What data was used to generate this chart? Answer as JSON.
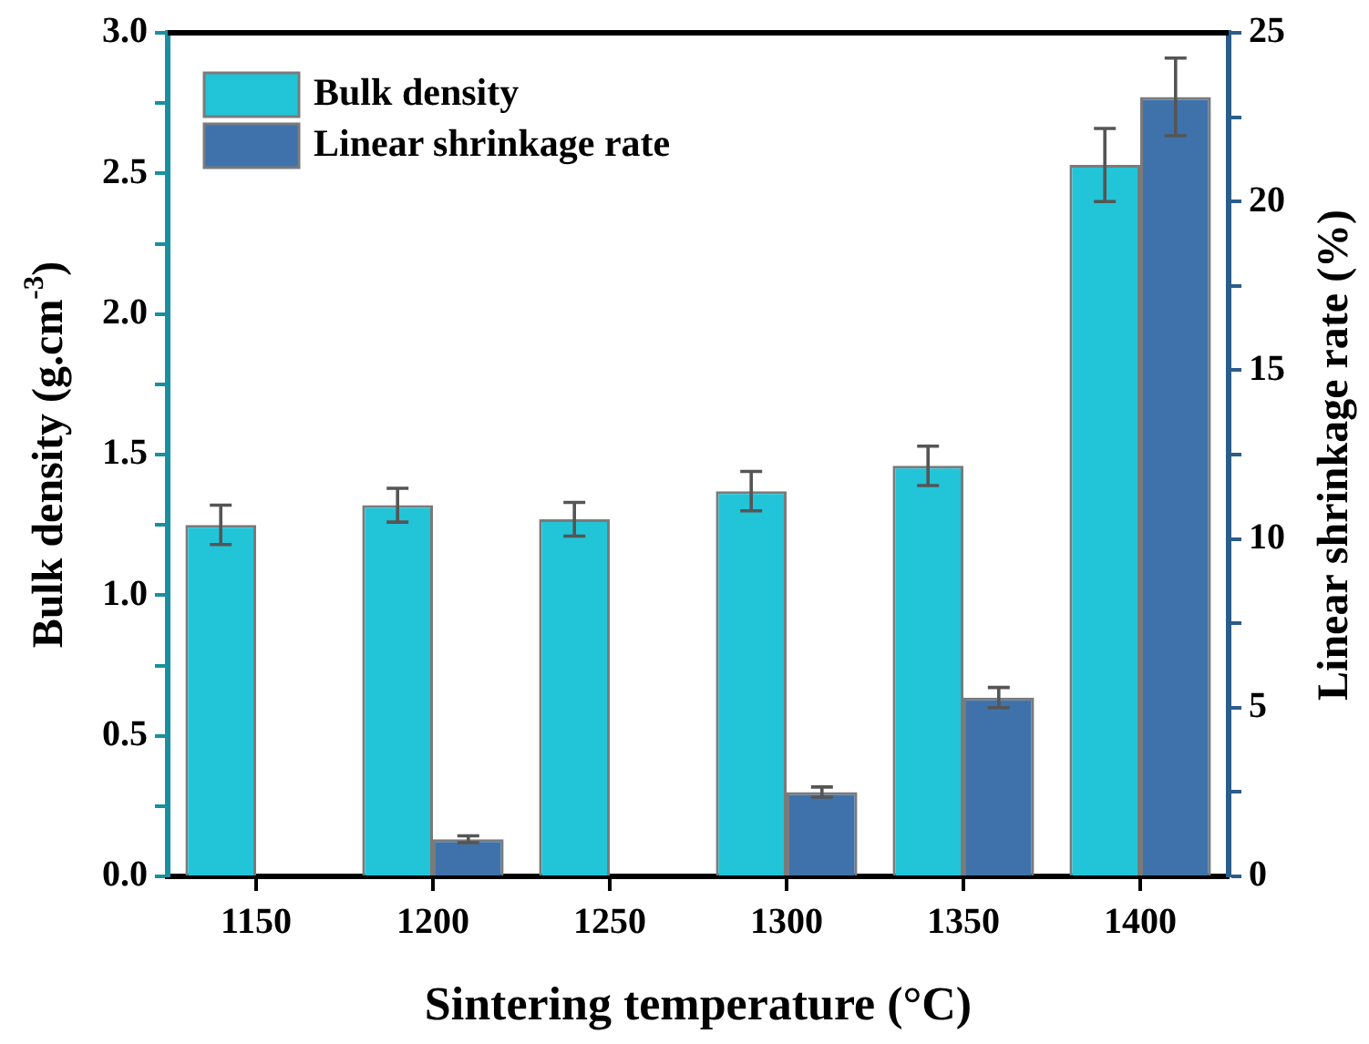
{
  "chart_data": {
    "type": "bar",
    "xlabel": "Sintering temperature (°C)",
    "ylabel": "Bulk density (g.cm$^{-3}$)",
    "y2label": "Linear shrinkage rate (%)",
    "categories": [
      "1150",
      "1200",
      "1250",
      "1300",
      "1350",
      "1400"
    ],
    "series": [
      {
        "name": "Bulk density",
        "color": "#22c4d8",
        "values": [
          1.25,
          1.32,
          1.27,
          1.37,
          1.46,
          2.53
        ],
        "errors": [
          0.07,
          0.06,
          0.06,
          0.07,
          0.07,
          0.13
        ]
      },
      {
        "name": "Linear shrinkage rate",
        "color": "#3f72aa",
        "axis": "y2",
        "values": [
          0,
          1.1,
          0,
          2.5,
          5.3,
          23.1
        ],
        "errors": [
          null,
          0.1,
          null,
          0.15,
          0.3,
          1.15
        ]
      }
    ],
    "ylim": [
      0,
      3.0
    ],
    "yticks": [
      {
        "value": 0,
        "label": "0.0"
      },
      {
        "value": 0.25,
        "label": null
      },
      {
        "value": 0.5,
        "label": "0.5"
      },
      {
        "value": 0.75,
        "label": null
      },
      {
        "value": 1,
        "label": "1.0"
      },
      {
        "value": 1.25,
        "label": null
      },
      {
        "value": 1.5,
        "label": "1.5"
      },
      {
        "value": 1.75,
        "label": null
      },
      {
        "value": 2,
        "label": "2.0"
      },
      {
        "value": 2.25,
        "label": null
      },
      {
        "value": 2.5,
        "label": "2.5"
      },
      {
        "value": 2.75,
        "label": null
      },
      {
        "value": 3,
        "label": "3.0"
      }
    ],
    "y2lim": [
      0,
      25
    ],
    "y2ticks": [
      0,
      {
        "value": 2.5,
        "label": null
      },
      5,
      {
        "value": 7.5,
        "label": null
      },
      10,
      {
        "value": 12.5,
        "label": null
      },
      15,
      {
        "value": 17.5,
        "label": null
      },
      20,
      {
        "value": 22.5,
        "label": null
      },
      25
    ],
    "legend": "top left",
    "grid": false
  }
}
